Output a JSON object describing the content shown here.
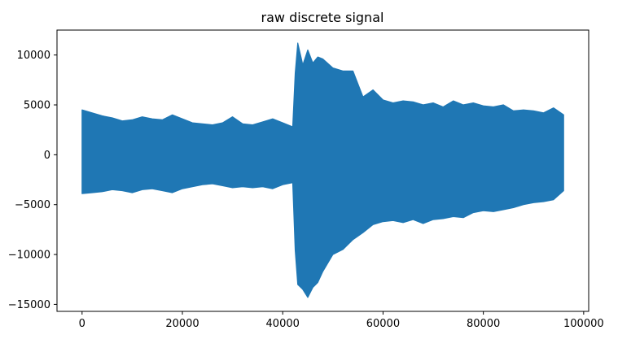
{
  "chart_data": {
    "type": "line",
    "title": "raw discrete signal",
    "xlabel": "",
    "ylabel": "",
    "xlim": [
      -5000,
      101000
    ],
    "ylim": [
      -15700,
      12500
    ],
    "x_ticks": [
      0,
      20000,
      40000,
      60000,
      80000,
      100000
    ],
    "x_tick_labels": [
      "0",
      "20000",
      "40000",
      "60000",
      "80000",
      "100000"
    ],
    "y_ticks": [
      -15000,
      -10000,
      -5000,
      0,
      5000,
      10000
    ],
    "y_tick_labels": [
      "−15000",
      "−10000",
      "−5000",
      "0",
      "5000",
      "10000"
    ],
    "grid": false,
    "series": [
      {
        "color": "#1f77b4",
        "x": [
          0,
          2000,
          4000,
          6000,
          8000,
          10000,
          12000,
          14000,
          16000,
          18000,
          20000,
          22000,
          24000,
          26000,
          28000,
          30000,
          32000,
          34000,
          36000,
          38000,
          40000,
          42000,
          42500,
          43000,
          44000,
          45000,
          46000,
          47000,
          48000,
          50000,
          52000,
          54000,
          56000,
          58000,
          60000,
          62000,
          64000,
          66000,
          68000,
          70000,
          72000,
          74000,
          76000,
          78000,
          80000,
          82000,
          84000,
          86000,
          88000,
          90000,
          92000,
          94000,
          96000
        ],
        "upper": [
          4500,
          4200,
          3900,
          3700,
          3400,
          3500,
          3800,
          3600,
          3500,
          4000,
          3600,
          3200,
          3100,
          3000,
          3200,
          3800,
          3100,
          3000,
          3300,
          3600,
          3200,
          2800,
          8200,
          11200,
          9000,
          10500,
          9200,
          9800,
          9600,
          8700,
          8400,
          8400,
          5800,
          6500,
          5500,
          5200,
          5400,
          5300,
          5000,
          5200,
          4800,
          5400,
          5000,
          5200,
          4900,
          4800,
          5000,
          4400,
          4500,
          4400,
          4200,
          4700,
          4000
        ],
        "lower": [
          -3900,
          -3800,
          -3700,
          -3500,
          -3600,
          -3800,
          -3500,
          -3400,
          -3600,
          -3800,
          -3400,
          -3200,
          -3000,
          -2900,
          -3100,
          -3300,
          -3200,
          -3300,
          -3200,
          -3400,
          -3000,
          -2800,
          -9600,
          -13000,
          -13500,
          -14300,
          -13300,
          -12800,
          -11700,
          -10000,
          -9500,
          -8500,
          -7800,
          -7000,
          -6700,
          -6600,
          -6800,
          -6500,
          -6900,
          -6500,
          -6400,
          -6200,
          -6300,
          -5800,
          -5600,
          -5700,
          -5500,
          -5300,
          -5000,
          -4800,
          -4700,
          -4500,
          -3600
        ]
      }
    ]
  }
}
